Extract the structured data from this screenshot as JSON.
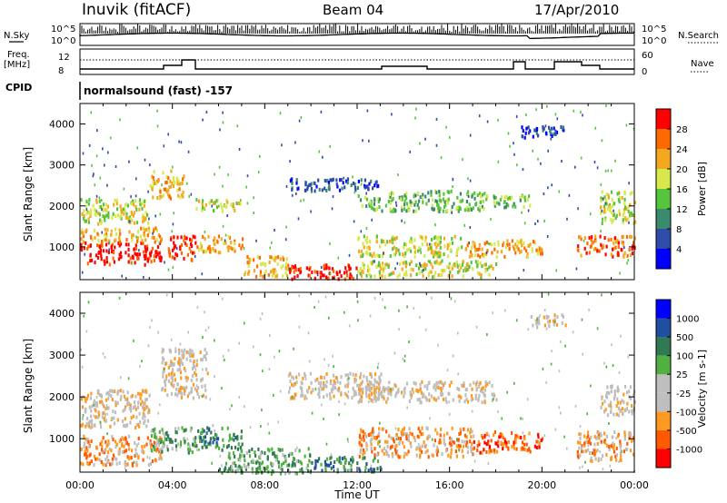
{
  "header": {
    "site": "Inuvik (fitACF)",
    "beam": "Beam 04",
    "date": "17/Apr/2010"
  },
  "strips": {
    "nsky_label": "N.Sky",
    "nsearch_label": "N.Search",
    "nsky_ticks": [
      "10^5",
      "10^0"
    ],
    "freq_label": "Freq.",
    "freq_unit": "[MHz]",
    "freq_ticks": [
      "12",
      "8"
    ],
    "nave_label": "Nave",
    "nave_ticks": [
      "60",
      "0"
    ],
    "cpid_label": "CPID",
    "cpid_value": "normalsound (fast) -157"
  },
  "colors": {
    "power": [
      "#0000ff",
      "#2e4ca8",
      "#3a8a6e",
      "#56c43c",
      "#d8e84a",
      "#f4a820",
      "#ff6a00",
      "#ff0000"
    ],
    "velocity": [
      "#ff0000",
      "#ff5a00",
      "#ff9a20",
      "#bebebe",
      "#bebebe",
      "#50b040",
      "#2f7a55",
      "#1f4fa0",
      "#0000ff"
    ]
  },
  "chart_data": [
    {
      "type": "heatmap",
      "name": "power",
      "ylabel": "Slant Range [km]",
      "yticks": [
        1000,
        2000,
        3000,
        4000
      ],
      "ylim": [
        200,
        4500
      ],
      "xlim_hours": [
        0,
        24
      ],
      "colorbar_label": "Power [dB]",
      "colorbar_ticks": [
        4,
        8,
        12,
        16,
        20,
        24,
        28
      ],
      "colorbar_range": [
        0,
        32
      ],
      "bands": [
        {
          "t0": 0.0,
          "t1": 3.5,
          "r0": 600,
          "r1": 1150,
          "level": 7
        },
        {
          "t0": 0.0,
          "t1": 3.5,
          "r0": 1150,
          "r1": 1500,
          "level": 5
        },
        {
          "t0": 0.0,
          "t1": 3.0,
          "r0": 1600,
          "r1": 2200,
          "level": 4
        },
        {
          "t0": 3.0,
          "t1": 4.5,
          "r0": 2200,
          "r1": 2900,
          "level": 5
        },
        {
          "t0": 3.8,
          "t1": 5.0,
          "r0": 700,
          "r1": 1300,
          "level": 7
        },
        {
          "t0": 5.0,
          "t1": 7.0,
          "r0": 900,
          "r1": 1300,
          "level": 5
        },
        {
          "t0": 5.0,
          "t1": 7.0,
          "r0": 1900,
          "r1": 2200,
          "level": 4
        },
        {
          "t0": 7.0,
          "t1": 9.0,
          "r0": 300,
          "r1": 800,
          "level": 5
        },
        {
          "t0": 9.0,
          "t1": 12.0,
          "r0": 250,
          "r1": 600,
          "level": 7
        },
        {
          "t0": 12.0,
          "t1": 16.5,
          "r0": 800,
          "r1": 1300,
          "level": 4
        },
        {
          "t0": 12.0,
          "t1": 17.5,
          "r0": 1900,
          "r1": 2400,
          "level": 3
        },
        {
          "t0": 12.0,
          "t1": 18.0,
          "r0": 300,
          "r1": 700,
          "level": 4
        },
        {
          "t0": 16.5,
          "t1": 20.0,
          "r0": 800,
          "r1": 1200,
          "level": 5
        },
        {
          "t0": 17.5,
          "t1": 19.5,
          "r0": 2000,
          "r1": 2300,
          "level": 3
        },
        {
          "t0": 19.0,
          "t1": 21.0,
          "r0": 3700,
          "r1": 4000,
          "level": 1
        },
        {
          "t0": 21.5,
          "t1": 24.0,
          "r0": 800,
          "r1": 1300,
          "level": 6
        },
        {
          "t0": 22.5,
          "t1": 24.0,
          "r0": 1600,
          "r1": 2400,
          "level": 4
        },
        {
          "t0": 9.0,
          "t1": 13.0,
          "r0": 2400,
          "r1": 2700,
          "level": 1
        }
      ]
    },
    {
      "type": "heatmap",
      "name": "velocity",
      "ylabel": "Slant Range [km]",
      "yticks": [
        1000,
        2000,
        3000,
        4000
      ],
      "ylim": [
        200,
        4500
      ],
      "xlim_hours": [
        0,
        24
      ],
      "xticks": [
        "00:00",
        "04:00",
        "08:00",
        "12:00",
        "16:00",
        "20:00",
        "00:00"
      ],
      "xlabel": "Time UT",
      "colorbar_label": "Velocity [m s-1]",
      "colorbar_ticks": [
        -1000,
        -500,
        -100,
        -25,
        25,
        100,
        500,
        1000
      ],
      "bands": [
        {
          "t0": 0.0,
          "t1": 3.5,
          "r0": 400,
          "r1": 1100,
          "level": 2
        },
        {
          "t0": 0.0,
          "t1": 3.0,
          "r0": 1300,
          "r1": 2200,
          "level": 3
        },
        {
          "t0": 3.0,
          "t1": 5.0,
          "r0": 700,
          "r1": 1300,
          "level": 5
        },
        {
          "t0": 3.5,
          "t1": 5.5,
          "r0": 2000,
          "r1": 3200,
          "level": 3
        },
        {
          "t0": 5.0,
          "t1": 7.0,
          "r0": 800,
          "r1": 1300,
          "level": 6
        },
        {
          "t0": 6.0,
          "t1": 10.0,
          "r0": 200,
          "r1": 800,
          "level": 5
        },
        {
          "t0": 10.0,
          "t1": 13.0,
          "r0": 250,
          "r1": 600,
          "level": 6
        },
        {
          "t0": 9.0,
          "t1": 13.0,
          "r0": 2000,
          "r1": 2600,
          "level": 3
        },
        {
          "t0": 12.0,
          "t1": 17.0,
          "r0": 600,
          "r1": 1300,
          "level": 2
        },
        {
          "t0": 12.0,
          "t1": 18.0,
          "r0": 1900,
          "r1": 2400,
          "level": 3
        },
        {
          "t0": 17.0,
          "t1": 20.0,
          "r0": 700,
          "r1": 1200,
          "level": 1
        },
        {
          "t0": 19.5,
          "t1": 21.0,
          "r0": 3700,
          "r1": 4000,
          "level": 3
        },
        {
          "t0": 21.5,
          "t1": 24.0,
          "r0": 500,
          "r1": 1200,
          "level": 2
        },
        {
          "t0": 22.5,
          "t1": 24.0,
          "r0": 1600,
          "r1": 2300,
          "level": 3
        }
      ]
    }
  ]
}
